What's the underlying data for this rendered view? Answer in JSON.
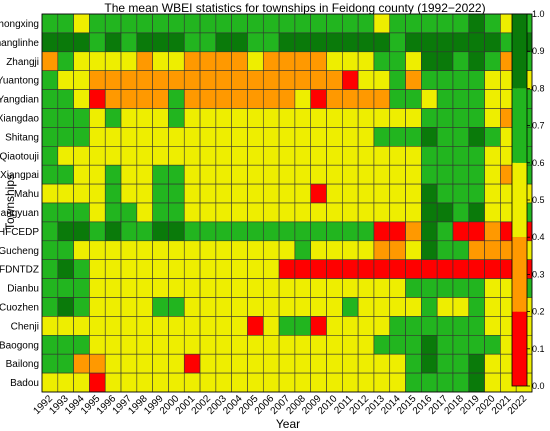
{
  "chart_data": {
    "type": "heatmap",
    "title": "The mean WBEI statistics for townships in Feidong county (1992−2022)",
    "xlabel": "Year",
    "ylabel": "Townships",
    "x": [
      "1992",
      "1993",
      "1994",
      "1995",
      "1996",
      "1997",
      "1998",
      "1999",
      "2000",
      "2001",
      "2002",
      "2003",
      "2004",
      "2005",
      "2006",
      "2007",
      "2008",
      "2009",
      "2010",
      "2011",
      "2012",
      "2013",
      "2014",
      "2015",
      "2016",
      "2017",
      "2018",
      "2019",
      "2020",
      "2021",
      "2022"
    ],
    "y": [
      "Zhongxing",
      "Changlinhe",
      "Zhangji",
      "Yuantong",
      "Yangdian",
      "Xiangdao",
      "Shitang",
      "Qiaotouji",
      "Xiangpai",
      "Mahu",
      "Liangyuan",
      "HFCEDP",
      "Gucheng",
      "FDNTDZ",
      "Dianbu",
      "Cuozhen",
      "Chenji",
      "Baogong",
      "Bailong",
      "Badou"
    ],
    "values": [
      [
        0.65,
        0.65,
        0.5,
        0.65,
        0.65,
        0.65,
        0.65,
        0.65,
        0.65,
        0.65,
        0.65,
        0.65,
        0.65,
        0.65,
        0.65,
        0.65,
        0.65,
        0.65,
        0.65,
        0.65,
        0.65,
        0.5,
        0.65,
        0.65,
        0.65,
        0.65,
        0.65,
        0.85,
        0.65,
        0.5,
        0.65
      ],
      [
        0.85,
        0.85,
        0.85,
        0.65,
        0.85,
        0.65,
        0.85,
        0.85,
        0.85,
        0.65,
        0.65,
        0.85,
        0.85,
        0.65,
        0.65,
        0.85,
        0.85,
        0.85,
        0.85,
        0.85,
        0.85,
        0.85,
        0.65,
        0.85,
        0.85,
        0.85,
        0.85,
        0.85,
        0.85,
        0.65,
        0.85
      ],
      [
        0.35,
        0.65,
        0.5,
        0.5,
        0.5,
        0.5,
        0.35,
        0.5,
        0.5,
        0.35,
        0.35,
        0.35,
        0.35,
        0.5,
        0.35,
        0.35,
        0.35,
        0.35,
        0.5,
        0.5,
        0.5,
        0.65,
        0.65,
        0.5,
        0.85,
        0.85,
        0.65,
        0.85,
        0.65,
        0.35,
        0.65
      ],
      [
        0.65,
        0.5,
        0.5,
        0.35,
        0.35,
        0.35,
        0.35,
        0.35,
        0.35,
        0.35,
        0.35,
        0.35,
        0.35,
        0.35,
        0.35,
        0.35,
        0.35,
        0.35,
        0.35,
        0.15,
        0.5,
        0.5,
        0.65,
        0.35,
        0.65,
        0.65,
        0.65,
        0.65,
        0.5,
        0.5,
        0.5
      ],
      [
        0.65,
        0.65,
        0.5,
        0.15,
        0.35,
        0.35,
        0.35,
        0.35,
        0.65,
        0.35,
        0.35,
        0.35,
        0.35,
        0.35,
        0.35,
        0.35,
        0.5,
        0.15,
        0.35,
        0.35,
        0.35,
        0.35,
        0.65,
        0.65,
        0.5,
        0.65,
        0.65,
        0.65,
        0.5,
        0.5,
        0.65
      ],
      [
        0.65,
        0.65,
        0.65,
        0.5,
        0.65,
        0.5,
        0.5,
        0.5,
        0.65,
        0.5,
        0.5,
        0.5,
        0.5,
        0.5,
        0.5,
        0.5,
        0.5,
        0.5,
        0.5,
        0.5,
        0.5,
        0.5,
        0.5,
        0.5,
        0.65,
        0.65,
        0.65,
        0.65,
        0.5,
        0.35,
        0.65
      ],
      [
        0.65,
        0.65,
        0.65,
        0.5,
        0.5,
        0.5,
        0.5,
        0.5,
        0.5,
        0.5,
        0.5,
        0.5,
        0.5,
        0.5,
        0.5,
        0.5,
        0.5,
        0.5,
        0.5,
        0.5,
        0.5,
        0.65,
        0.65,
        0.65,
        0.85,
        0.65,
        0.65,
        0.85,
        0.65,
        0.5,
        0.65
      ],
      [
        0.65,
        0.5,
        0.5,
        0.5,
        0.5,
        0.5,
        0.5,
        0.5,
        0.5,
        0.5,
        0.5,
        0.5,
        0.5,
        0.5,
        0.5,
        0.5,
        0.5,
        0.5,
        0.5,
        0.5,
        0.5,
        0.5,
        0.5,
        0.5,
        0.65,
        0.65,
        0.65,
        0.65,
        0.5,
        0.5,
        0.65
      ],
      [
        0.65,
        0.65,
        0.5,
        0.5,
        0.65,
        0.5,
        0.5,
        0.65,
        0.65,
        0.5,
        0.5,
        0.5,
        0.5,
        0.5,
        0.5,
        0.5,
        0.5,
        0.5,
        0.5,
        0.5,
        0.5,
        0.5,
        0.5,
        0.5,
        0.65,
        0.65,
        0.65,
        0.65,
        0.5,
        0.35,
        0.65
      ],
      [
        0.5,
        0.5,
        0.5,
        0.5,
        0.65,
        0.5,
        0.5,
        0.65,
        0.65,
        0.5,
        0.5,
        0.5,
        0.5,
        0.5,
        0.5,
        0.5,
        0.5,
        0.15,
        0.5,
        0.5,
        0.5,
        0.5,
        0.5,
        0.5,
        0.85,
        0.65,
        0.65,
        0.65,
        0.5,
        0.5,
        0.5
      ],
      [
        0.65,
        0.65,
        0.65,
        0.5,
        0.65,
        0.65,
        0.5,
        0.65,
        0.65,
        0.5,
        0.5,
        0.5,
        0.5,
        0.5,
        0.5,
        0.5,
        0.5,
        0.5,
        0.5,
        0.5,
        0.5,
        0.5,
        0.5,
        0.5,
        0.85,
        0.85,
        0.65,
        0.85,
        0.5,
        0.5,
        0.65
      ],
      [
        0.65,
        0.85,
        0.85,
        0.65,
        0.85,
        0.65,
        0.65,
        0.85,
        0.85,
        0.65,
        0.65,
        0.65,
        0.65,
        0.65,
        0.65,
        0.65,
        0.65,
        0.65,
        0.65,
        0.65,
        0.65,
        0.15,
        0.15,
        0.35,
        0.85,
        0.65,
        0.15,
        0.15,
        0.35,
        0.15,
        0.15
      ],
      [
        0.65,
        0.65,
        0.5,
        0.5,
        0.5,
        0.5,
        0.5,
        0.5,
        0.5,
        0.5,
        0.5,
        0.5,
        0.5,
        0.5,
        0.5,
        0.5,
        0.65,
        0.5,
        0.5,
        0.5,
        0.5,
        0.35,
        0.35,
        0.5,
        0.85,
        0.65,
        0.65,
        0.35,
        0.35,
        0.35,
        0.5
      ],
      [
        0.65,
        0.85,
        0.65,
        0.5,
        0.5,
        0.5,
        0.5,
        0.5,
        0.5,
        0.5,
        0.5,
        0.5,
        0.5,
        0.5,
        0.5,
        0.15,
        0.15,
        0.15,
        0.15,
        0.15,
        0.15,
        0.15,
        0.15,
        0.15,
        0.15,
        0.15,
        0.15,
        0.15,
        0.15,
        0.15,
        0.15
      ],
      [
        0.65,
        0.65,
        0.65,
        0.5,
        0.5,
        0.5,
        0.5,
        0.5,
        0.5,
        0.5,
        0.5,
        0.5,
        0.5,
        0.5,
        0.5,
        0.5,
        0.5,
        0.5,
        0.5,
        0.5,
        0.5,
        0.5,
        0.5,
        0.65,
        0.65,
        0.65,
        0.65,
        0.65,
        0.5,
        0.5,
        0.65
      ],
      [
        0.65,
        0.85,
        0.65,
        0.5,
        0.5,
        0.5,
        0.5,
        0.65,
        0.65,
        0.5,
        0.5,
        0.5,
        0.5,
        0.5,
        0.5,
        0.5,
        0.5,
        0.5,
        0.5,
        0.65,
        0.5,
        0.5,
        0.5,
        0.5,
        0.65,
        0.5,
        0.5,
        0.65,
        0.5,
        0.5,
        0.5
      ],
      [
        0.5,
        0.5,
        0.5,
        0.5,
        0.5,
        0.5,
        0.5,
        0.5,
        0.5,
        0.5,
        0.5,
        0.5,
        0.5,
        0.15,
        0.5,
        0.65,
        0.65,
        0.15,
        0.5,
        0.5,
        0.5,
        0.5,
        0.65,
        0.65,
        0.65,
        0.65,
        0.65,
        0.65,
        0.5,
        0.5,
        0.5
      ],
      [
        0.65,
        0.65,
        0.65,
        0.5,
        0.5,
        0.5,
        0.5,
        0.5,
        0.5,
        0.5,
        0.5,
        0.5,
        0.5,
        0.5,
        0.5,
        0.5,
        0.5,
        0.5,
        0.5,
        0.5,
        0.5,
        0.65,
        0.65,
        0.65,
        0.85,
        0.65,
        0.65,
        0.65,
        0.65,
        0.5,
        0.5
      ],
      [
        0.65,
        0.65,
        0.35,
        0.35,
        0.5,
        0.5,
        0.5,
        0.5,
        0.5,
        0.15,
        0.5,
        0.5,
        0.5,
        0.5,
        0.5,
        0.5,
        0.5,
        0.5,
        0.5,
        0.5,
        0.5,
        0.5,
        0.5,
        0.65,
        0.85,
        0.65,
        0.65,
        0.85,
        0.5,
        0.5,
        0.5
      ],
      [
        0.5,
        0.5,
        0.5,
        0.15,
        0.5,
        0.5,
        0.5,
        0.5,
        0.5,
        0.5,
        0.5,
        0.5,
        0.5,
        0.5,
        0.5,
        0.5,
        0.5,
        0.5,
        0.5,
        0.5,
        0.5,
        0.5,
        0.5,
        0.65,
        0.65,
        0.65,
        0.65,
        0.85,
        0.5,
        0.5,
        0.5
      ]
    ],
    "vlim": [
      0.0,
      1.0
    ],
    "colorbar": {
      "ticks": [
        "0.0",
        "0.1",
        "0.2",
        "0.3",
        "0.4",
        "0.5",
        "0.6",
        "0.7",
        "0.8",
        "0.9",
        "1.0"
      ],
      "bins": [
        {
          "from": 0.0,
          "to": 0.2,
          "color": "#ff0000"
        },
        {
          "from": 0.2,
          "to": 0.4,
          "color": "#ff9900"
        },
        {
          "from": 0.4,
          "to": 0.6,
          "color": "#eeee00"
        },
        {
          "from": 0.6,
          "to": 0.8,
          "color": "#22b51f"
        },
        {
          "from": 0.8,
          "to": 1.0,
          "color": "#0a7a0a"
        }
      ]
    },
    "grid": true
  }
}
